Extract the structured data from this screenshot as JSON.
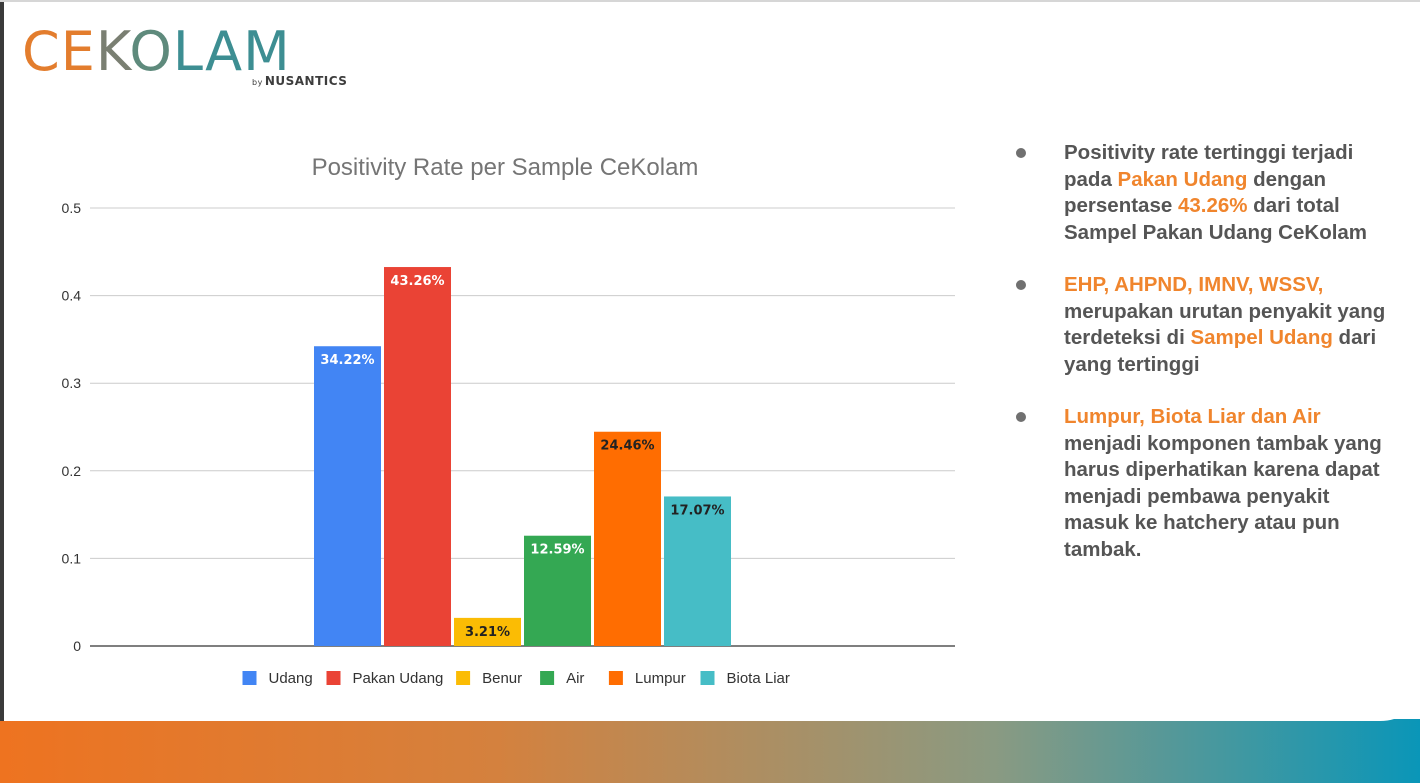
{
  "brand": {
    "logo_letters": [
      "C",
      "E",
      "K",
      "O",
      "L",
      "A",
      "M"
    ],
    "by_label": "by",
    "company": "NUSANTICS",
    "colors": {
      "orange": "#e37d2d",
      "teal": "#3d8e92",
      "dark": "#3b3b3b"
    }
  },
  "chart_data": {
    "type": "bar",
    "title": "Positivity Rate per Sample CeKolam",
    "categories": [
      "Udang",
      "Pakan Udang",
      "Benur",
      "Air",
      "Lumpur",
      "Biota Liar"
    ],
    "values": [
      0.3422,
      0.4326,
      0.0321,
      0.1259,
      0.2446,
      0.1707
    ],
    "labels": [
      "34.22%",
      "43.26%",
      "3.21%",
      "12.59%",
      "24.46%",
      "17.07%"
    ],
    "colors": [
      "#4285f4",
      "#ea4335",
      "#fbbc04",
      "#34a853",
      "#ff6d01",
      "#46bdc6"
    ],
    "label_colors": [
      "#ffffff",
      "#ffffff",
      "#222222",
      "#ffffff",
      "#222222",
      "#222222"
    ],
    "ylim": [
      0,
      0.5
    ],
    "yticks": [
      0,
      0.1,
      0.2,
      0.3,
      0.4,
      0.5
    ],
    "ytick_labels": [
      "0",
      "0.1",
      "0.2",
      "0.3",
      "0.4",
      "0.5"
    ],
    "grid": true,
    "legend": "bottom",
    "xlabel": "",
    "ylabel": ""
  },
  "insights": [
    {
      "segments": [
        {
          "text": "Positivity rate tertinggi terjadi pada ",
          "hl": false
        },
        {
          "text": "Pakan Udang",
          "hl": true
        },
        {
          "text": " dengan persentase ",
          "hl": false
        },
        {
          "text": "43.26%",
          "hl": true
        },
        {
          "text": " dari total Sampel Pakan Udang CeKolam",
          "hl": false
        }
      ]
    },
    {
      "segments": [
        {
          "text": "EHP, AHPND, IMNV, WSSV,",
          "hl": true
        },
        {
          "text": " merupakan urutan penyakit yang terdeteksi di ",
          "hl": false
        },
        {
          "text": "Sampel Udang",
          "hl": true
        },
        {
          "text": " dari yang tertinggi",
          "hl": false
        }
      ]
    },
    {
      "segments": [
        {
          "text": "Lumpur, Biota Liar dan Air",
          "hl": true
        },
        {
          "text": " menjadi komponen tambak yang harus diperhatikan karena dapat menjadi pembawa penyakit masuk ke hatchery atau pun tambak.",
          "hl": false
        }
      ]
    }
  ],
  "footer": {
    "gradient_start": "#ee7320",
    "gradient_end": "#0a96b8"
  }
}
